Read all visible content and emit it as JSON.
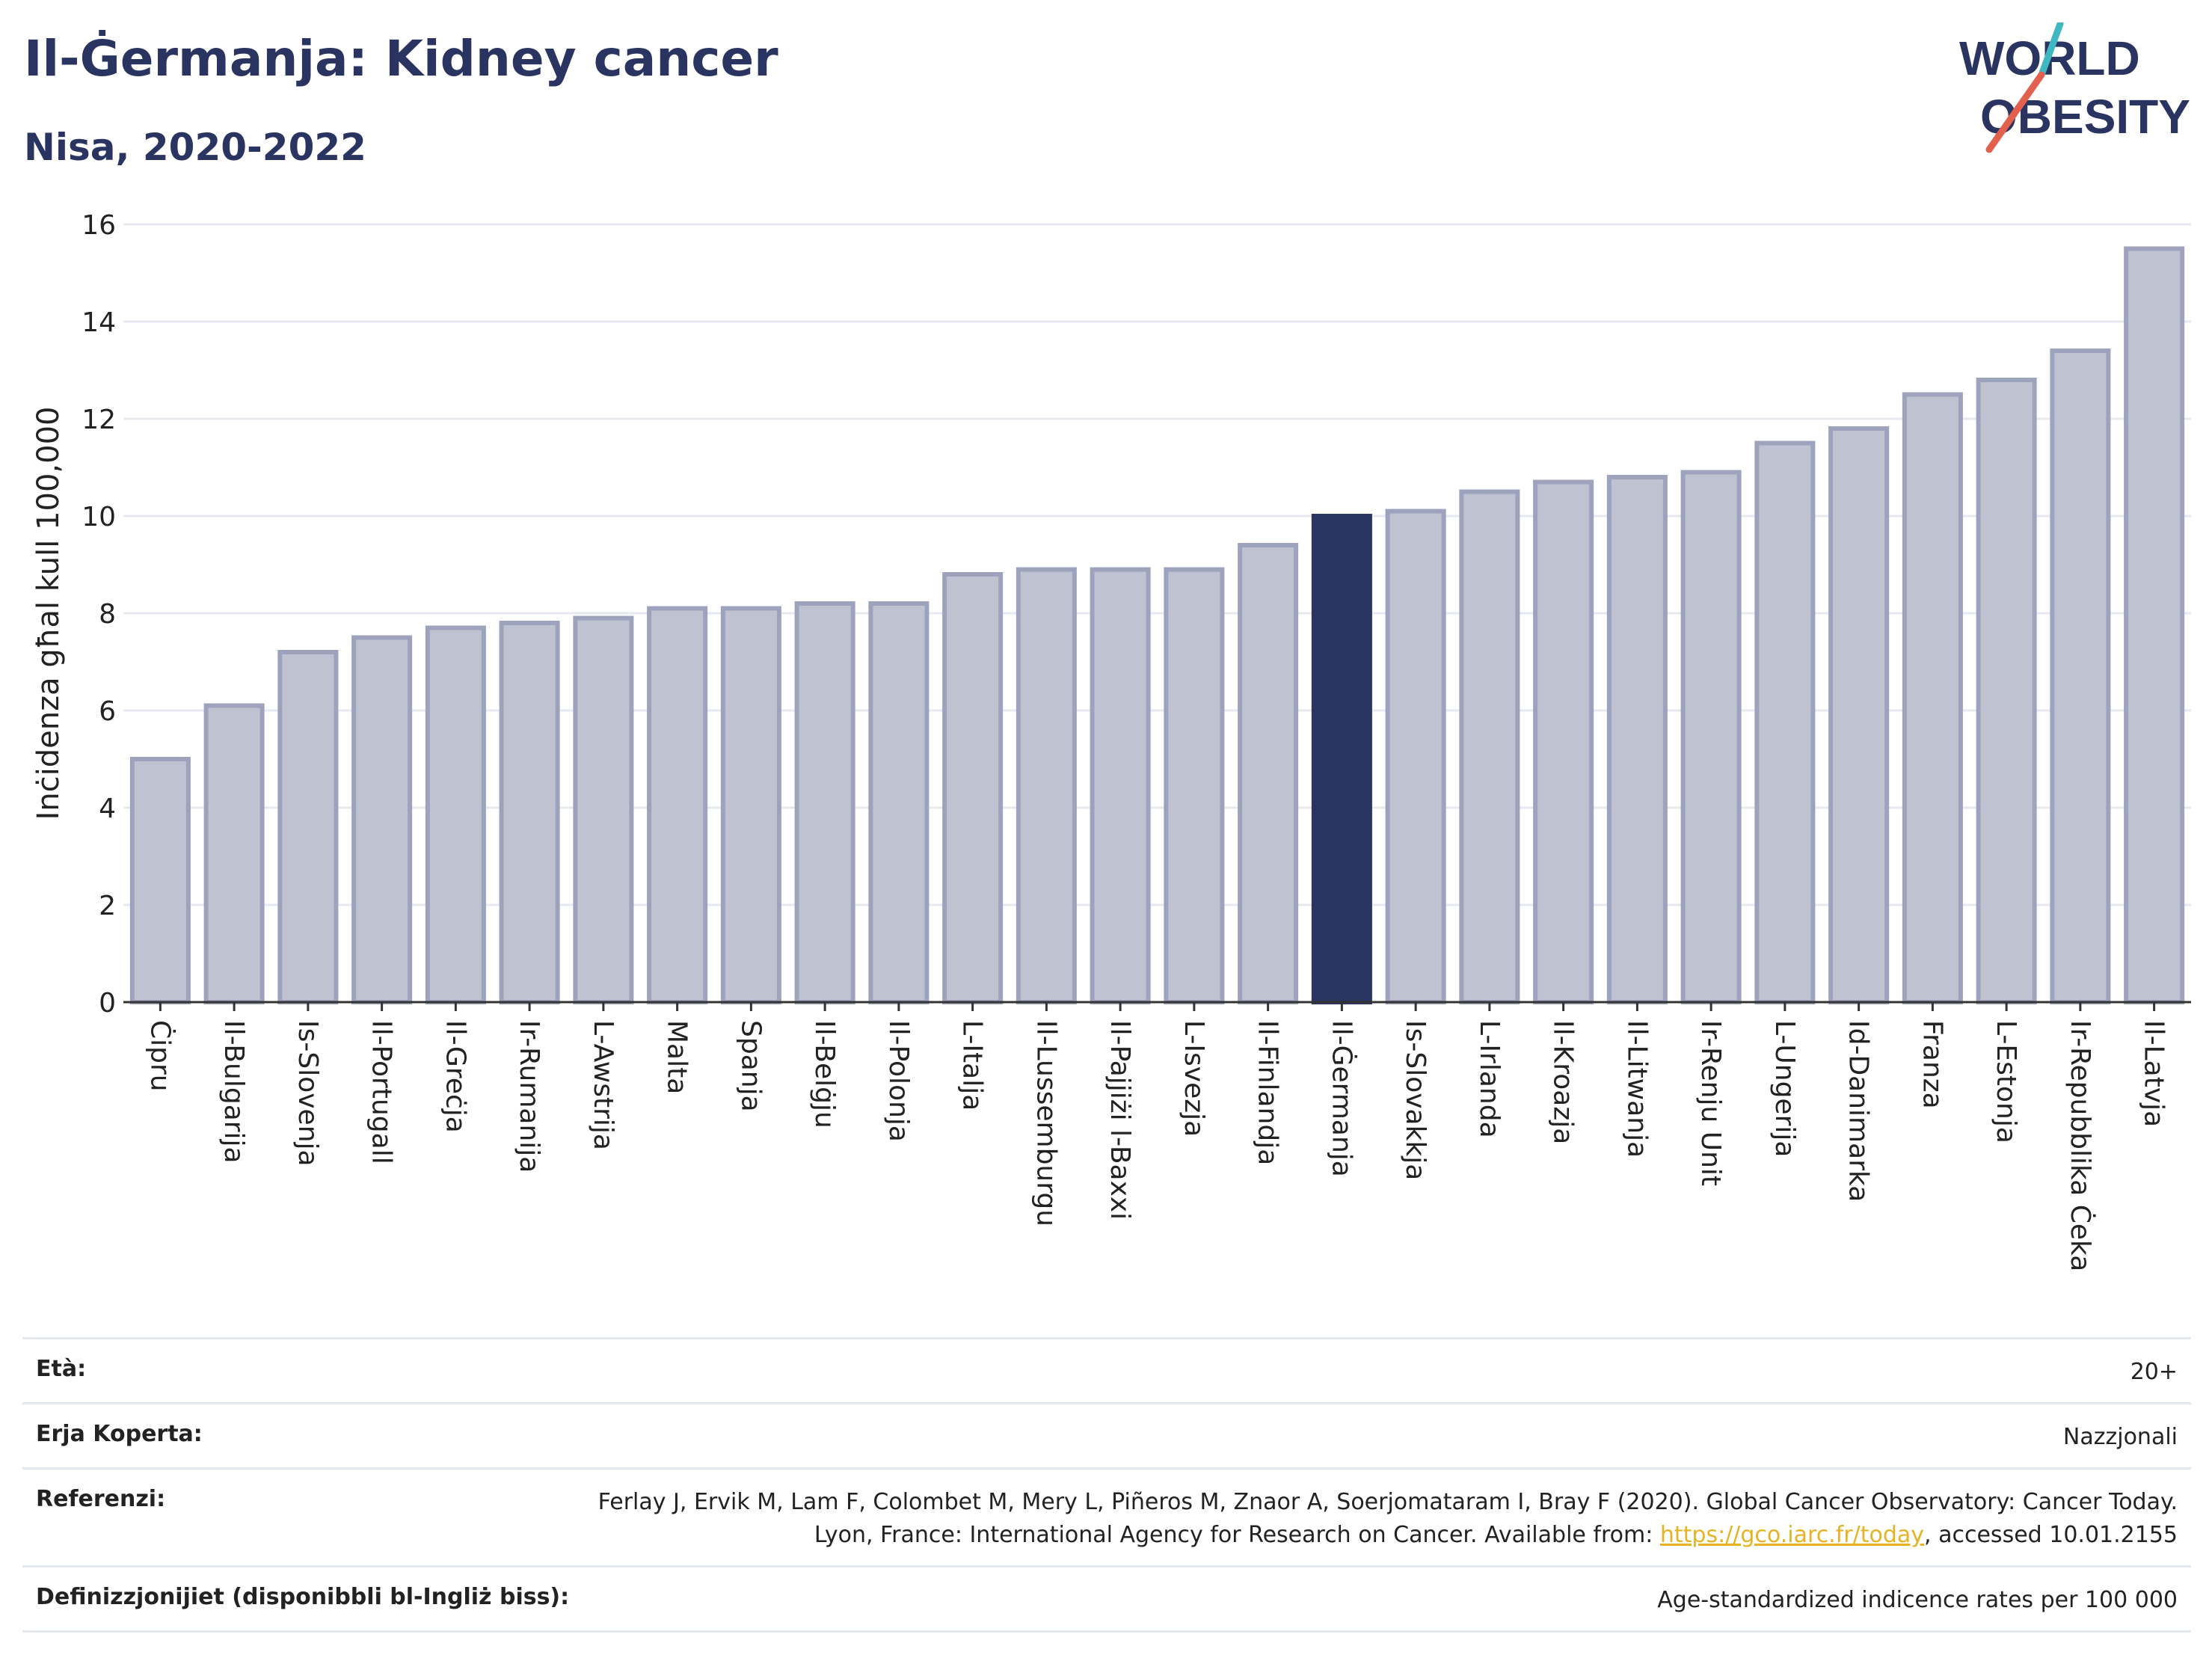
{
  "header": {
    "title": "Il-Ġermanja: Kidney cancer",
    "subtitle": "Nisa, 2020-2022"
  },
  "logo": {
    "line1": "WORLD",
    "line2": "OBESITY",
    "accent_teal": "#3fb8c4",
    "accent_red": "#e3604f"
  },
  "chart_data": {
    "type": "bar",
    "title": "Il-Ġermanja: Kidney cancer",
    "subtitle": "Nisa, 2020-2022",
    "xlabel": "",
    "ylabel": "Inċidenza għal kull 100,000",
    "ylim": [
      0,
      16
    ],
    "yticks": [
      0,
      2,
      4,
      6,
      8,
      10,
      12,
      14,
      16
    ],
    "grid": true,
    "highlight": "Il-Ġermanja",
    "colors": {
      "bar": "#bfc2d1",
      "bar_stroke": "#9ea3bd",
      "highlight": "#2a3461"
    },
    "categories": [
      "Ċipru",
      "Il-Bulgarija",
      "Is-Slovenja",
      "Il-Portugall",
      "Il-Greċja",
      "Ir-Rumanija",
      "L-Awstrija",
      "Malta",
      "Spanja",
      "Il-Belġju",
      "Il-Polonja",
      "L-Italja",
      "Il-Lussemburgu",
      "Il-Pajjiżi l-Baxxi",
      "L-Isvezja",
      "Il-Finlandja",
      "Il-Ġermanja",
      "Is-Slovakkja",
      "L-Irlanda",
      "Il-Kroazja",
      "Il-Litwanja",
      "Ir-Renju Unit",
      "L-Ungerija",
      "Id-Danimarka",
      "Franza",
      "L-Estonja",
      "Ir-Repubblika Ċeka",
      "Il-Latvja"
    ],
    "values": [
      5.0,
      6.1,
      7.2,
      7.5,
      7.7,
      7.8,
      7.9,
      8.1,
      8.1,
      8.2,
      8.2,
      8.8,
      8.9,
      8.9,
      8.9,
      9.4,
      10.0,
      10.1,
      10.5,
      10.7,
      10.8,
      10.9,
      11.5,
      11.8,
      12.5,
      12.8,
      13.4,
      15.5
    ]
  },
  "meta": {
    "age_label": "Età:",
    "age_value": "20+",
    "area_label": "Erja Koperta:",
    "area_value": "Nazzjonali",
    "ref_label": "Referenzi:",
    "ref_text_1": "Ferlay J, Ervik M, Lam F, Colombet M, Mery L, Piñeros M, Znaor A, Soerjomataram I, Bray F (2020). Global Cancer Observatory: Cancer Today. Lyon, France: International Agency for Research on Cancer. Available from: ",
    "ref_link": "https://gco.iarc.fr/today",
    "ref_text_2": ", accessed 10.01.2155",
    "def_label": "Definizzjonijiet (disponibbli bl-Ingliż biss):",
    "def_value": "Age-standardized indicence rates per 100 000"
  }
}
